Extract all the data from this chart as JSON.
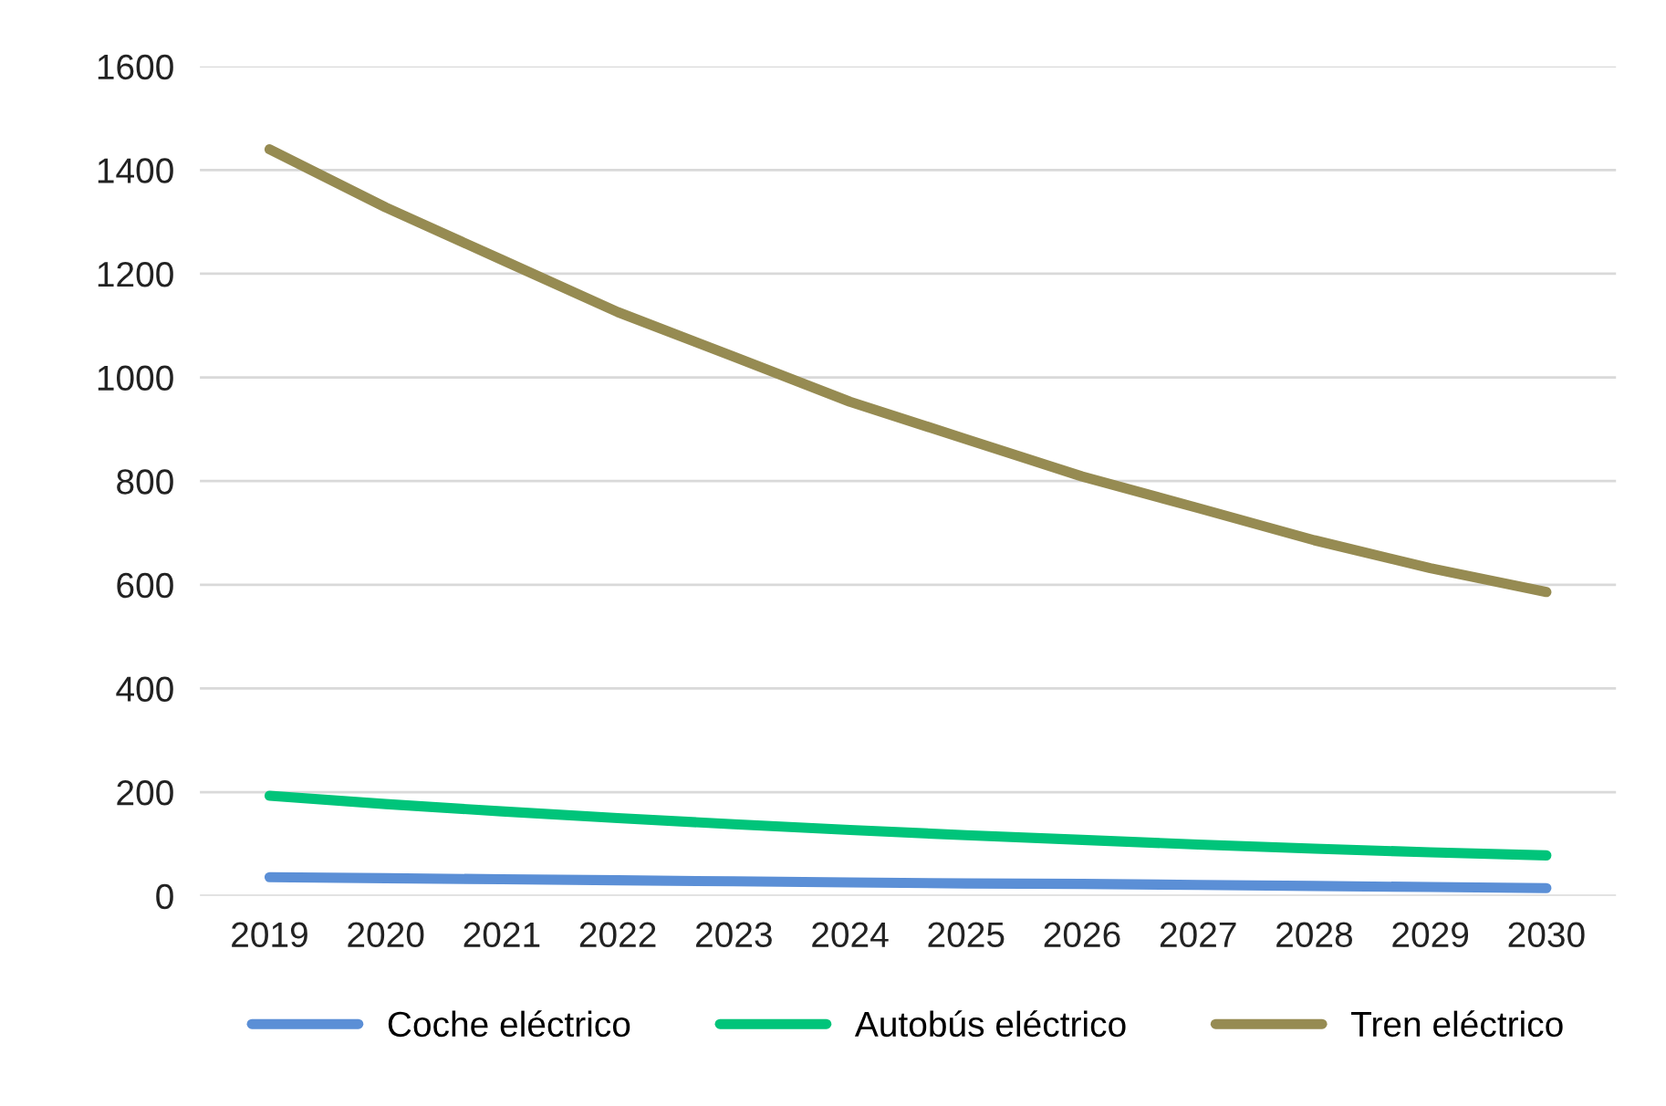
{
  "chart_data": {
    "type": "line",
    "categories": [
      "2019",
      "2020",
      "2021",
      "2022",
      "2023",
      "2024",
      "2025",
      "2026",
      "2027",
      "2028",
      "2029",
      "2030"
    ],
    "series": [
      {
        "name": "Coche eléctrico",
        "color": "#5b8fd6",
        "values": [
          36,
          34,
          32,
          30,
          28,
          26,
          24,
          23,
          21,
          19,
          17,
          15
        ]
      },
      {
        "name": "Autobús eléctrico",
        "color": "#00c47a",
        "values": [
          193,
          177,
          163,
          150,
          138,
          127,
          117,
          108,
          99,
          91,
          84,
          78
        ]
      },
      {
        "name": "Tren eléctrico",
        "color": "#968b52",
        "values": [
          1440,
          1328,
          1227,
          1126,
          1040,
          953,
          881,
          809,
          748,
          686,
          632,
          586
        ]
      }
    ],
    "ylim": [
      0,
      1600
    ],
    "yticks": [
      0,
      200,
      400,
      600,
      800,
      1000,
      1200,
      1400,
      1600
    ],
    "grid": "y",
    "legend": "bottom",
    "marker": "none",
    "line_style": "solid"
  }
}
